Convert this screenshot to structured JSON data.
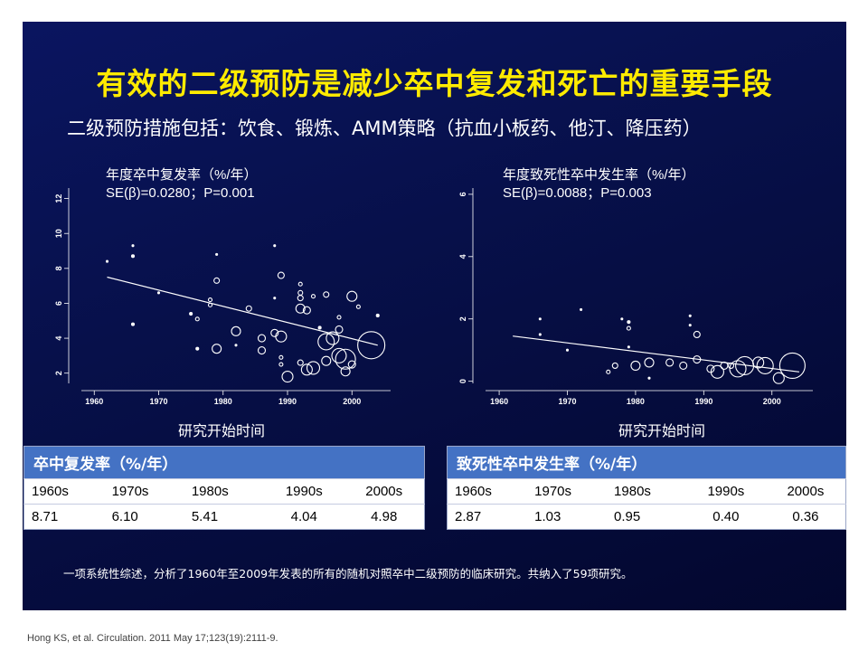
{
  "slide": {
    "title": "有效的二级预防是减少卒中复发和死亡的重要手段",
    "subtitle": "二级预防措施包括：饮食、锻炼、AMM策略（抗血小板药、他汀、降压药）",
    "footnote": "一项系统性综述，分析了1960年至2009年发表的所有的随机对照卒中二级预防的临床研究。共纳入了59项研究。",
    "citation": "Hong KS, et al. Circulation. 2011 May 17;123(19):2111-9.",
    "background_color": "#07104a",
    "title_color": "#ffeb00",
    "table_header_color": "#4472c4"
  },
  "chart_data": [
    {
      "type": "scatter",
      "annotation_line1": "年度卒中复发率（%/年）",
      "annotation_line2": "SE(β)=0.0280；P=0.001",
      "xlabel": "研究开始时间",
      "xlim": [
        1958,
        2006
      ],
      "ylim": [
        1,
        12.6
      ],
      "xticks": [
        "1960",
        "1970",
        "1980",
        "1990",
        "2000"
      ],
      "yticks": [
        "2",
        "4",
        "6",
        "8",
        "10",
        "12"
      ],
      "trend": {
        "x": [
          1962,
          2004
        ],
        "y": [
          7.5,
          3.6
        ]
      },
      "points": [
        {
          "x": 1962,
          "y": 8.4,
          "s": 1
        },
        {
          "x": 1966,
          "y": 9.3,
          "s": 1
        },
        {
          "x": 1966,
          "y": 8.7,
          "s": 1.5
        },
        {
          "x": 1966,
          "y": 4.8,
          "s": 1.5
        },
        {
          "x": 1970,
          "y": 6.6,
          "s": 1
        },
        {
          "x": 1975,
          "y": 5.4,
          "s": 1.5
        },
        {
          "x": 1976,
          "y": 5.1,
          "s": 2
        },
        {
          "x": 1976,
          "y": 3.4,
          "s": 1.5
        },
        {
          "x": 1978,
          "y": 6.2,
          "s": 2
        },
        {
          "x": 1978,
          "y": 5.9,
          "s": 2
        },
        {
          "x": 1979,
          "y": 8.8,
          "s": 1
        },
        {
          "x": 1979,
          "y": 7.3,
          "s": 3
        },
        {
          "x": 1979,
          "y": 3.4,
          "s": 5
        },
        {
          "x": 1982,
          "y": 4.4,
          "s": 5
        },
        {
          "x": 1982,
          "y": 3.6,
          "s": 1
        },
        {
          "x": 1984,
          "y": 5.7,
          "s": 3
        },
        {
          "x": 1986,
          "y": 4.0,
          "s": 4
        },
        {
          "x": 1986,
          "y": 3.3,
          "s": 4
        },
        {
          "x": 1988,
          "y": 9.3,
          "s": 1
        },
        {
          "x": 1988,
          "y": 6.3,
          "s": 1
        },
        {
          "x": 1988,
          "y": 4.3,
          "s": 4
        },
        {
          "x": 1989,
          "y": 7.6,
          "s": 3.5
        },
        {
          "x": 1989,
          "y": 4.1,
          "s": 6
        },
        {
          "x": 1989,
          "y": 2.9,
          "s": 2
        },
        {
          "x": 1989,
          "y": 2.5,
          "s": 2
        },
        {
          "x": 1990,
          "y": 1.8,
          "s": 6
        },
        {
          "x": 1992,
          "y": 7.1,
          "s": 2
        },
        {
          "x": 1992,
          "y": 6.6,
          "s": 2.5
        },
        {
          "x": 1992,
          "y": 6.3,
          "s": 3
        },
        {
          "x": 1992,
          "y": 5.7,
          "s": 5
        },
        {
          "x": 1992,
          "y": 2.6,
          "s": 3
        },
        {
          "x": 1993,
          "y": 5.6,
          "s": 4
        },
        {
          "x": 1993,
          "y": 2.2,
          "s": 6
        },
        {
          "x": 1994,
          "y": 6.4,
          "s": 2
        },
        {
          "x": 1994,
          "y": 2.3,
          "s": 7
        },
        {
          "x": 1995,
          "y": 4.6,
          "s": 1.5
        },
        {
          "x": 1996,
          "y": 6.5,
          "s": 3
        },
        {
          "x": 1996,
          "y": 3.8,
          "s": 9
        },
        {
          "x": 1996,
          "y": 2.7,
          "s": 5
        },
        {
          "x": 1997,
          "y": 4.0,
          "s": 7
        },
        {
          "x": 1998,
          "y": 5.2,
          "s": 2
        },
        {
          "x": 1998,
          "y": 4.5,
          "s": 4
        },
        {
          "x": 1998,
          "y": 3.0,
          "s": 8
        },
        {
          "x": 1999,
          "y": 2.8,
          "s": 11
        },
        {
          "x": 1999,
          "y": 2.1,
          "s": 5
        },
        {
          "x": 2000,
          "y": 2.5,
          "s": 4
        },
        {
          "x": 2000,
          "y": 6.4,
          "s": 5.5
        },
        {
          "x": 2001,
          "y": 5.8,
          "s": 2
        },
        {
          "x": 2003,
          "y": 3.6,
          "s": 15
        },
        {
          "x": 2004,
          "y": 5.3,
          "s": 1.5
        }
      ]
    },
    {
      "type": "scatter",
      "annotation_line1": "年度致死性卒中发生率（%/年）",
      "annotation_line2": "SE(β)=0.0088；P=0.003",
      "xlabel": "研究开始时间",
      "xlim": [
        1958,
        2006
      ],
      "ylim": [
        -0.3,
        6.2
      ],
      "xticks": [
        "1960",
        "1970",
        "1980",
        "1990",
        "2000"
      ],
      "yticks": [
        "0",
        "2",
        "4",
        "6"
      ],
      "trend": {
        "x": [
          1962,
          2004
        ],
        "y": [
          1.45,
          0.3
        ]
      },
      "points": [
        {
          "x": 1966,
          "y": 2.0,
          "s": 1
        },
        {
          "x": 1966,
          "y": 1.5,
          "s": 1
        },
        {
          "x": 1970,
          "y": 1.0,
          "s": 1
        },
        {
          "x": 1972,
          "y": 2.3,
          "s": 1
        },
        {
          "x": 1976,
          "y": 0.3,
          "s": 2
        },
        {
          "x": 1977,
          "y": 0.5,
          "s": 3
        },
        {
          "x": 1978,
          "y": 2.0,
          "s": 1
        },
        {
          "x": 1979,
          "y": 1.9,
          "s": 1.5
        },
        {
          "x": 1979,
          "y": 1.7,
          "s": 2
        },
        {
          "x": 1979,
          "y": 1.1,
          "s": 1
        },
        {
          "x": 1980,
          "y": 0.5,
          "s": 5
        },
        {
          "x": 1982,
          "y": 0.6,
          "s": 5
        },
        {
          "x": 1982,
          "y": 0.1,
          "s": 1
        },
        {
          "x": 1985,
          "y": 0.6,
          "s": 4
        },
        {
          "x": 1987,
          "y": 0.5,
          "s": 4
        },
        {
          "x": 1988,
          "y": 2.1,
          "s": 1
        },
        {
          "x": 1988,
          "y": 1.8,
          "s": 1
        },
        {
          "x": 1989,
          "y": 1.5,
          "s": 3.5
        },
        {
          "x": 1989,
          "y": 0.7,
          "s": 4
        },
        {
          "x": 1991,
          "y": 0.4,
          "s": 4
        },
        {
          "x": 1992,
          "y": 0.3,
          "s": 7
        },
        {
          "x": 1993,
          "y": 0.5,
          "s": 4
        },
        {
          "x": 1994,
          "y": 0.5,
          "s": 3
        },
        {
          "x": 1995,
          "y": 0.4,
          "s": 9
        },
        {
          "x": 1996,
          "y": 0.5,
          "s": 10
        },
        {
          "x": 1998,
          "y": 0.6,
          "s": 6
        },
        {
          "x": 1999,
          "y": 0.5,
          "s": 9
        },
        {
          "x": 2001,
          "y": 0.1,
          "s": 6
        },
        {
          "x": 2003,
          "y": 0.5,
          "s": 14
        }
      ]
    }
  ],
  "tables": [
    {
      "header": "卒中复发率（%/年）",
      "columns": [
        "1960s",
        "1970s",
        "1980s",
        "1990s",
        "2000s"
      ],
      "values": [
        "8.71",
        "6.10",
        "5.41",
        "4.04",
        "4.98"
      ]
    },
    {
      "header": "致死性卒中发生率（%/年）",
      "columns": [
        "1960s",
        "1970s",
        "1980s",
        "1990s",
        "2000s"
      ],
      "values": [
        "2.87",
        "1.03",
        "0.95",
        "0.40",
        "0.36"
      ]
    }
  ]
}
